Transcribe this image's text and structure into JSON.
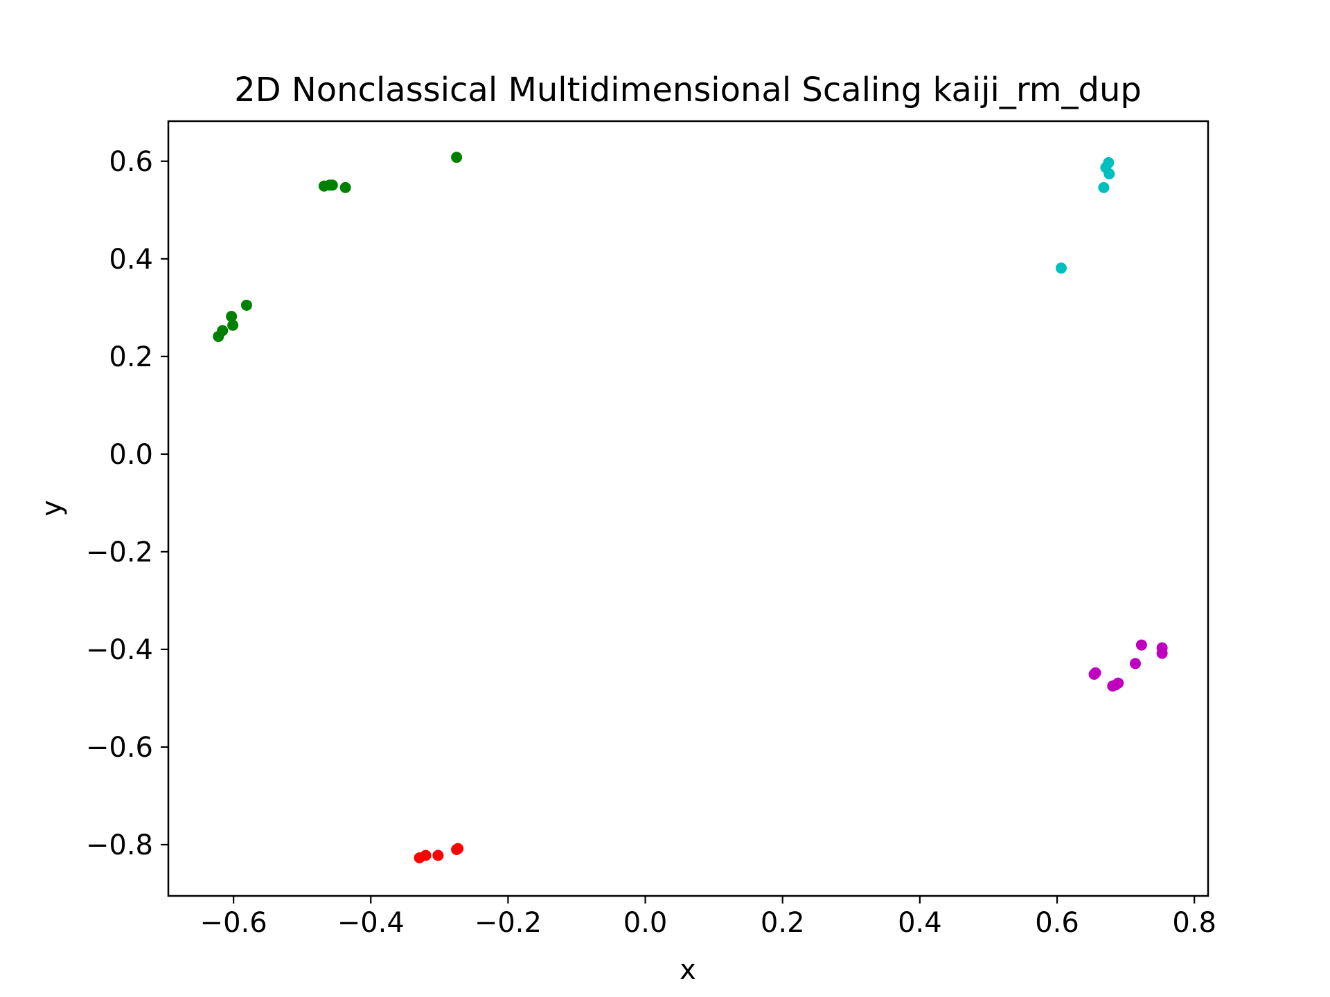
{
  "chart_data": {
    "type": "scatter",
    "title": "2D Nonclassical Multidimensional Scaling kaiji_rm_dup",
    "xlabel": "x",
    "ylabel": "y",
    "xlim": [
      -0.695,
      0.82
    ],
    "ylim": [
      -0.905,
      0.682
    ],
    "xticks": [
      -0.6,
      -0.4,
      -0.2,
      0.0,
      0.2,
      0.4,
      0.6,
      0.8
    ],
    "xtick_labels": [
      "−0.6",
      "−0.4",
      "−0.2",
      "0.0",
      "0.2",
      "0.4",
      "0.6",
      "0.8"
    ],
    "yticks": [
      0.6,
      0.4,
      0.2,
      0.0,
      -0.2,
      -0.4,
      -0.6,
      -0.8
    ],
    "ytick_labels": [
      "0.6",
      "0.4",
      "0.2",
      "0.0",
      "−0.2",
      "−0.4",
      "−0.6",
      "−0.8"
    ],
    "grid": false,
    "legend": false,
    "series": [
      {
        "color": "#008000",
        "points": [
          [
            -0.275,
            0.608
          ],
          [
            -0.468,
            0.549
          ],
          [
            -0.46,
            0.551
          ],
          [
            -0.456,
            0.551
          ],
          [
            -0.437,
            0.546
          ],
          [
            -0.581,
            0.305
          ],
          [
            -0.603,
            0.282
          ],
          [
            -0.601,
            0.264
          ],
          [
            -0.616,
            0.253
          ],
          [
            -0.622,
            0.241
          ]
        ]
      },
      {
        "color": "#00bfbf",
        "points": [
          [
            0.675,
            0.597
          ],
          [
            0.671,
            0.587
          ],
          [
            0.676,
            0.574
          ],
          [
            0.668,
            0.546
          ],
          [
            0.606,
            0.381
          ]
        ]
      },
      {
        "color": "#bf00bf",
        "points": [
          [
            0.723,
            -0.391
          ],
          [
            0.753,
            -0.397
          ],
          [
            0.753,
            -0.408
          ],
          [
            0.714,
            -0.429
          ],
          [
            0.656,
            -0.448
          ],
          [
            0.654,
            -0.451
          ],
          [
            0.689,
            -0.469
          ],
          [
            0.685,
            -0.473
          ],
          [
            0.681,
            -0.475
          ]
        ]
      },
      {
        "color": "#ff0000",
        "points": [
          [
            -0.273,
            -0.808
          ],
          [
            -0.275,
            -0.81
          ],
          [
            -0.302,
            -0.822
          ],
          [
            -0.32,
            -0.822
          ],
          [
            -0.329,
            -0.827
          ]
        ]
      }
    ]
  }
}
